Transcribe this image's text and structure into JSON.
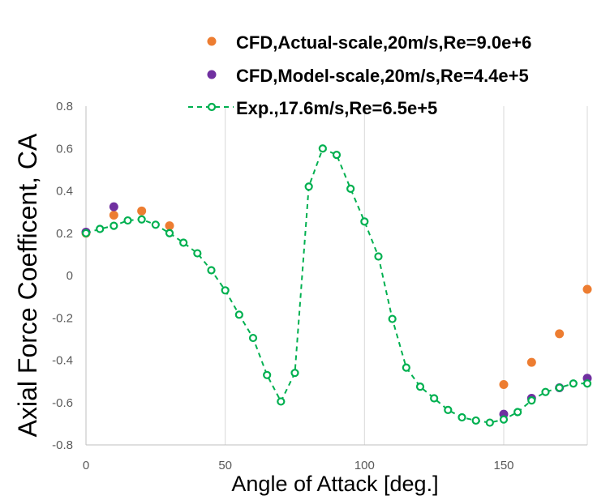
{
  "chart_data": {
    "type": "scatter",
    "title": "",
    "xlabel": "Angle of Attack [deg.]",
    "ylabel": "Axial Force Coefficent, CA",
    "xlim": [
      0,
      180
    ],
    "ylim": [
      -0.8,
      0.8
    ],
    "xticks": [
      0,
      50,
      100,
      150
    ],
    "yticks": [
      -0.8,
      -0.6,
      -0.4,
      -0.2,
      0,
      0.2,
      0.4,
      0.6,
      0.8
    ],
    "xtick_labels": [
      "0",
      "50",
      "100",
      "150"
    ],
    "ytick_labels": [
      "-0.8",
      "-0.6",
      "-0.4",
      "-0.2",
      "0",
      "0.2",
      "0.4",
      "0.6",
      "0.8"
    ],
    "grid": "vertical",
    "legend_position": "top",
    "series": [
      {
        "name": "CFD,Actual-scale,20m/s,Re=9.0e+6",
        "color": "#ED7D31",
        "marker": "filled-circle",
        "line": "none",
        "x": [
          0,
          10,
          20,
          30,
          150,
          160,
          170,
          180
        ],
        "y": [
          0.2,
          0.285,
          0.305,
          0.235,
          -0.515,
          -0.41,
          -0.275,
          -0.065
        ]
      },
      {
        "name": "CFD,Model-scale,20m/s,Re=4.4e+5",
        "color": "#7030A0",
        "marker": "filled-circle",
        "line": "none",
        "x": [
          0,
          10,
          150,
          160,
          170,
          180
        ],
        "y": [
          0.205,
          0.325,
          -0.655,
          -0.58,
          -0.53,
          -0.485
        ]
      },
      {
        "name": "Exp.,17.6m/s,Re=6.5e+5",
        "color": "#00B050",
        "marker": "hollow-circle",
        "line": "dashed",
        "x": [
          0,
          5,
          10,
          15,
          20,
          25,
          30,
          35,
          40,
          45,
          50,
          55,
          60,
          65,
          70,
          75,
          80,
          85,
          90,
          95,
          100,
          105,
          110,
          115,
          120,
          125,
          130,
          135,
          140,
          145,
          150,
          155,
          160,
          165,
          170,
          175,
          180
        ],
        "y": [
          0.2,
          0.22,
          0.235,
          0.26,
          0.265,
          0.24,
          0.2,
          0.155,
          0.105,
          0.025,
          -0.07,
          -0.185,
          -0.295,
          -0.47,
          -0.595,
          -0.46,
          0.42,
          0.6,
          0.57,
          0.41,
          0.255,
          0.09,
          -0.205,
          -0.435,
          -0.525,
          -0.58,
          -0.635,
          -0.67,
          -0.685,
          -0.695,
          -0.68,
          -0.645,
          -0.59,
          -0.55,
          -0.53,
          -0.51,
          -0.51
        ]
      }
    ]
  }
}
